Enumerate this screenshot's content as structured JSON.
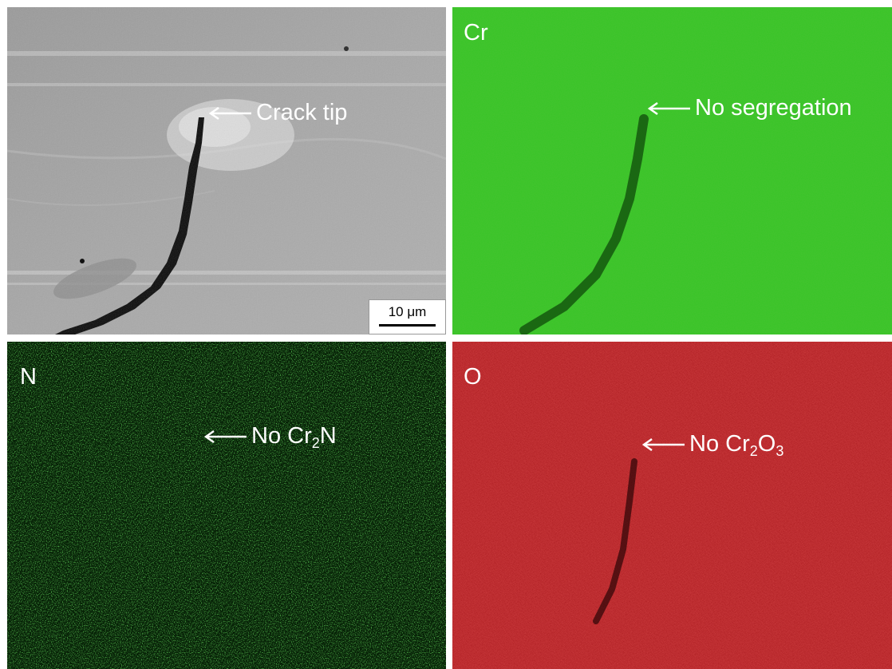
{
  "panels": {
    "sem": {
      "annotation": "Crack tip",
      "scale_bar": "10 μm"
    },
    "cr": {
      "label": "Cr",
      "annotation": "No segregation"
    },
    "n": {
      "label": "N",
      "annotation_prefix": "No Cr",
      "annotation_sub": "2",
      "annotation_suffix": "N"
    },
    "o": {
      "label": "O",
      "annotation_prefix": "No Cr",
      "annotation_sub1": "2",
      "annotation_mid": "O",
      "annotation_sub2": "3"
    }
  },
  "colors": {
    "sem_background": "#a9a9a9",
    "cr_map": "#2fbf1f",
    "n_map_dark": "#041a04",
    "n_map_dot": "#25b51f",
    "o_map": "#c4141a",
    "annotation_text": "#ffffff"
  }
}
